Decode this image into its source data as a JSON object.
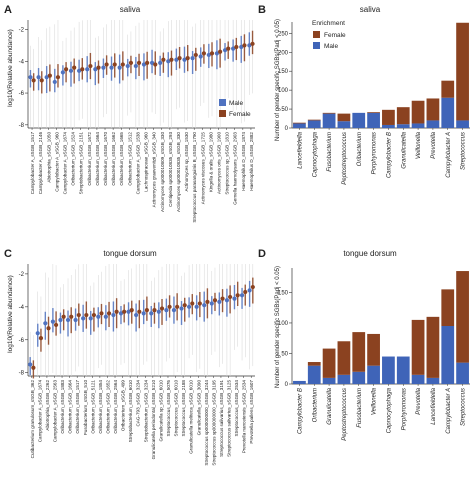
{
  "panels": {
    "A": {
      "letter": "A",
      "title": "saliva",
      "ylabel": "log10(Relative abundance)"
    },
    "B": {
      "letter": "B",
      "title": "saliva",
      "ylabel": "Number of gender specific SGBs(Padj < 0.05)"
    },
    "C": {
      "letter": "C",
      "title": "tongue dorsum",
      "ylabel": "log10(Relative abundance)"
    },
    "D": {
      "letter": "D",
      "title": "tongue dorsum",
      "ylabel": "Number of gender specific SGBs(Padj < 0.05)"
    }
  },
  "legend_male_female": {
    "male": "Male",
    "female": "Female"
  },
  "legend_enrichment": {
    "title": "Enrichment",
    "female": "Female",
    "male": "Male"
  },
  "colors": {
    "male": "#4f72c0",
    "female": "#8b4220",
    "male_bar": "#3f64b8",
    "female_bar": "#8b4220"
  },
  "chart_data": [
    {
      "panel": "A",
      "type": "scatter",
      "title": "saliva",
      "ylabel": "log10(Relative abundance)",
      "yticks": [
        -2,
        -4,
        -6,
        -8
      ],
      "ylim": [
        -8.2,
        -1.4
      ],
      "categories": [
        "Campylobacter A_sSGB_1517",
        "Campylobacter A_sSGB_2146",
        "Abiotrophia_sSGB_1050",
        "Campylobacter A_sSGB_960",
        "Campylobacter A_sSGB_1674",
        "Oribacterium_sSGB_1524",
        "Streptobacterium_sSGB_2151",
        "Oribacterium_sSGB_1672",
        "Oribacterium_sSGB_1664",
        "Oribacterium_sSGB_1670",
        "Oribacterium_sSGB_1662",
        "Oribacterium_sSGB_1665",
        "Oribacterium_sSGB_1512",
        "Campylobacter A_sSGB_1538",
        "Lachnospiraceae_sSGB_960",
        "Actinomyces graevenitzii_sSGB_340",
        "Actinomyces sp000010809_sSGB_330",
        "Centipeda sp000010835_sSGB_293",
        "Actinomyces sp000010835_sSGB_330",
        "Actinomyces sp_sSGB_1530",
        "Streptococcus parasanguinis B_sSGB_1790",
        "Actinomyces viscosus_sSGB_1725",
        "Kingella & oralis_sSGB_1980",
        "Actinomyces oris_sSGB_1900",
        "Streptococcus sp_sSGB_1810",
        "Gemella haemolysans_sSGB_2903",
        "Haemophilus D_sSGB_1874",
        "Haemophilus D_sSGB_2882"
      ],
      "series": [
        {
          "name": "Male",
          "values": [
            -5.0,
            -5.0,
            -5.0,
            -5.3,
            -4.7,
            -4.6,
            -4.6,
            -4.5,
            -4.5,
            -4.4,
            -4.4,
            -4.4,
            -4.3,
            -4.3,
            -4.2,
            -4.1,
            -4.1,
            -4.0,
            -3.9,
            -3.9,
            -3.8,
            -3.7,
            -3.6,
            -3.5,
            -3.3,
            -3.2,
            -3.1,
            -3.0
          ]
        },
        {
          "name": "Female",
          "values": [
            -5.2,
            -5.2,
            -4.9,
            -5.0,
            -4.5,
            -4.4,
            -4.5,
            -4.3,
            -4.4,
            -4.2,
            -4.2,
            -4.2,
            -4.1,
            -4.1,
            -4.1,
            -4.2,
            -3.9,
            -3.9,
            -3.8,
            -3.8,
            -3.6,
            -3.5,
            -3.5,
            -3.4,
            -3.2,
            -3.1,
            -3.0,
            -2.9
          ]
        }
      ],
      "legend": "bottom-right"
    },
    {
      "panel": "B",
      "type": "bar",
      "title": "saliva",
      "ylabel": "Number of gender specific SGBs(Padj < 0.05)",
      "yticks": [
        0,
        50,
        100,
        150,
        200,
        250
      ],
      "ylim": [
        0,
        280
      ],
      "categories": [
        "Lancefieldella",
        "Capnocytophaga",
        "Fusobacterium",
        "Peptostreptococcus",
        "Oribacterium",
        "Porphyromonas",
        "Campylobacter B",
        "Granulicatella",
        "Veillonella",
        "Prevotella",
        "Campylobacter A",
        "Streptococcus"
      ],
      "series": [
        {
          "name": "Male",
          "values": [
            12,
            20,
            38,
            18,
            40,
            40,
            8,
            10,
            12,
            20,
            80,
            20
          ]
        },
        {
          "name": "Female",
          "values": [
            2,
            2,
            2,
            20,
            0,
            2,
            40,
            45,
            60,
            58,
            45,
            258
          ]
        }
      ],
      "legend": "top-left"
    },
    {
      "panel": "C",
      "type": "scatter",
      "title": "tongue dorsum",
      "ylabel": "log10(Relative abundance)",
      "yticks": [
        -2,
        -4,
        -6,
        -8
      ],
      "ylim": [
        -8.2,
        -1.4
      ],
      "categories": [
        "Cutibacterium granulosum_sSGB_362",
        "Campylobacter A_sSGB_1674",
        "Abiotrophia_sSGB_2262",
        "Campylobacter A_sSGB_2563",
        "Oribacterium_sSGB_1883",
        "Oribacterium_sSGB_1664",
        "Oribacterium_sSGB_1517",
        "Fusobacterium_sSGB_510",
        "Oribacterium_sSGB_5121",
        "Oribacterium_sSGB_1854",
        "Oribacterium_sSGB_1652",
        "Oribacterium_sSGB_2564",
        "Oribacterium_sSGB_499",
        "Streptobacterium_sSGB_6010",
        "CAG-793_sSGB_3234",
        "Streptobacterium_sSGB_3234",
        "Granulicatella periodontal_sSGB_5210",
        "Granulicatella sp_sSGB_6010",
        "Streptococcus_sSGB_5076",
        "Streptococcus_sSGB_6010",
        "Streptococcus_sSGB_2188",
        "Granulicatella meliteca_sSGB_6010",
        "Granulicatella_sSGB_3090",
        "Streptococcus sp000000000_sSGB_3244",
        "Streptococcus sp000000000_sSGB_3195",
        "Streptococcus salivarius_sSGB_3191",
        "Streptococcus salivarius_sSGB_3125",
        "Streptococcus_sSGB_2534",
        "Prevotella nanceiensis_sSGB_2534",
        "Prevotella pallens_sSGB_1607"
      ],
      "series": [
        {
          "name": "Male",
          "values": [
            -7.5,
            -5.6,
            -5.0,
            -4.9,
            -4.8,
            -4.8,
            -4.8,
            -4.7,
            -4.7,
            -4.6,
            -4.6,
            -4.5,
            -4.4,
            -4.3,
            -4.5,
            -4.4,
            -4.4,
            -4.3,
            -4.2,
            -4.2,
            -4.1,
            -4.0,
            -4.0,
            -3.9,
            -3.8,
            -3.7,
            -3.6,
            -3.5,
            -3.3,
            -3.0
          ]
        },
        {
          "name": "Female",
          "values": [
            -7.7,
            -5.9,
            -5.3,
            -5.1,
            -4.6,
            -4.6,
            -4.5,
            -4.5,
            -4.5,
            -4.4,
            -4.4,
            -4.3,
            -4.3,
            -4.2,
            -4.3,
            -4.2,
            -4.2,
            -4.1,
            -4.0,
            -4.0,
            -3.9,
            -3.8,
            -3.8,
            -3.7,
            -3.6,
            -3.5,
            -3.4,
            -3.3,
            -3.1,
            -2.8
          ]
        }
      ]
    },
    {
      "panel": "D",
      "type": "bar",
      "title": "tongue dorsum",
      "ylabel": "Number of gender specific SGBs(Padj < 0.05)",
      "yticks": [
        0,
        50,
        100,
        150
      ],
      "ylim": [
        0,
        190
      ],
      "categories": [
        "Campylobacter B",
        "Oribacterium",
        "Granulicatella",
        "Peptostreptococcus",
        "Fusobacterium",
        "Veillonella",
        "Capnocytophaga",
        "Porphyromonas",
        "Prevotella",
        "Lancefieldella",
        "Campylobacter A",
        "Streptococcus"
      ],
      "series": [
        {
          "name": "Male",
          "values": [
            5,
            30,
            10,
            15,
            20,
            30,
            45,
            45,
            15,
            10,
            95,
            35
          ]
        },
        {
          "name": "Female",
          "values": [
            0,
            6,
            48,
            55,
            65,
            52,
            0,
            0,
            90,
            100,
            60,
            150
          ]
        }
      ],
      "legend": "top-left"
    }
  ]
}
